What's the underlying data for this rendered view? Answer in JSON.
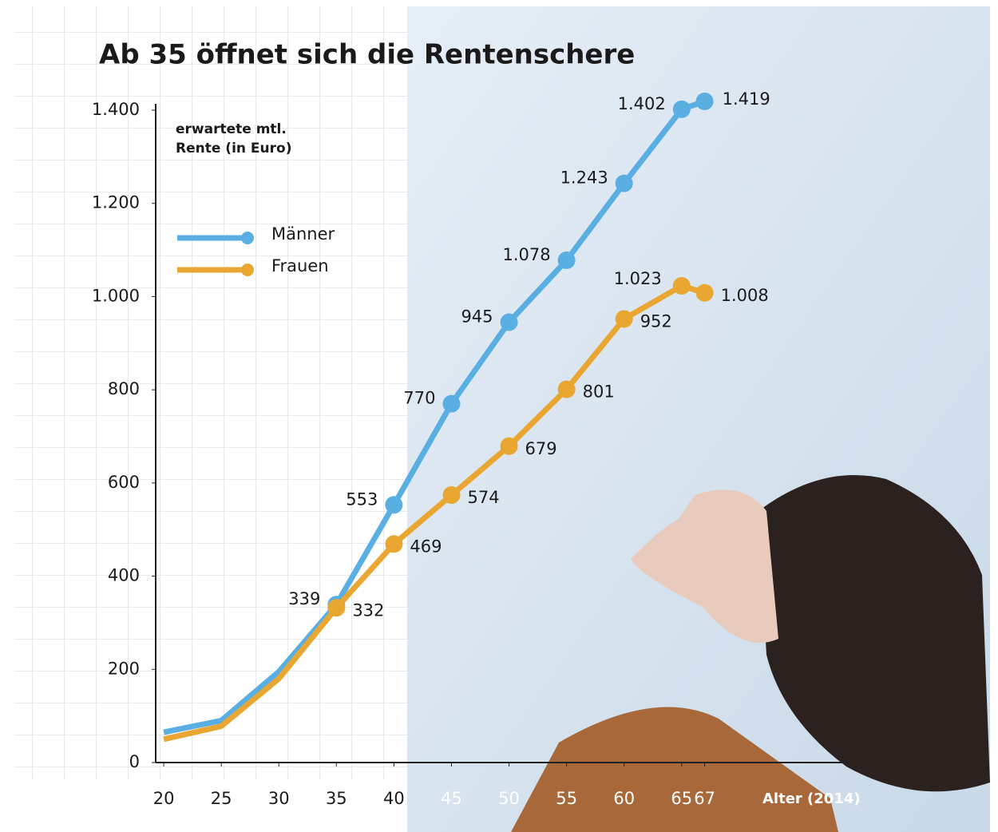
{
  "chart_data": {
    "type": "line",
    "title": "Ab 35 öffnet sich die Rentenschere",
    "ylabel": [
      "erwartete mtl.",
      "Rente (in Euro)"
    ],
    "xlabel": "Alter (2014)",
    "x": [
      20,
      25,
      30,
      35,
      40,
      45,
      50,
      55,
      60,
      65,
      67
    ],
    "xlim": [
      19.3,
      80
    ],
    "xticks": [
      20,
      25,
      30,
      35,
      40,
      45,
      50,
      55,
      60,
      65,
      67
    ],
    "ylim": [
      0,
      1400
    ],
    "yticks": [
      0,
      200,
      400,
      600,
      800,
      {
        "value": 1000,
        "label": "1.000"
      },
      {
        "value": 1200,
        "label": "1.200"
      },
      {
        "value": 1400,
        "label": "1.400"
      }
    ],
    "series": [
      {
        "name": "Männer",
        "color": "#5aafe2",
        "values": [
          65,
          90,
          195,
          339,
          553,
          770,
          945,
          1078,
          1243,
          1402,
          1419
        ],
        "value_labels": [
          null,
          null,
          null,
          "339",
          "553",
          "770",
          "945",
          "1.078",
          "1.243",
          "1.402",
          "1.419"
        ]
      },
      {
        "name": "Frauen",
        "color": "#e9a630",
        "values": [
          50,
          78,
          180,
          332,
          469,
          574,
          679,
          801,
          952,
          1023,
          1008
        ],
        "value_labels": [
          null,
          null,
          null,
          "332",
          "469",
          "574",
          "679",
          "801",
          "952",
          "1.023",
          "1.008"
        ]
      }
    ],
    "legend": "upper left"
  }
}
